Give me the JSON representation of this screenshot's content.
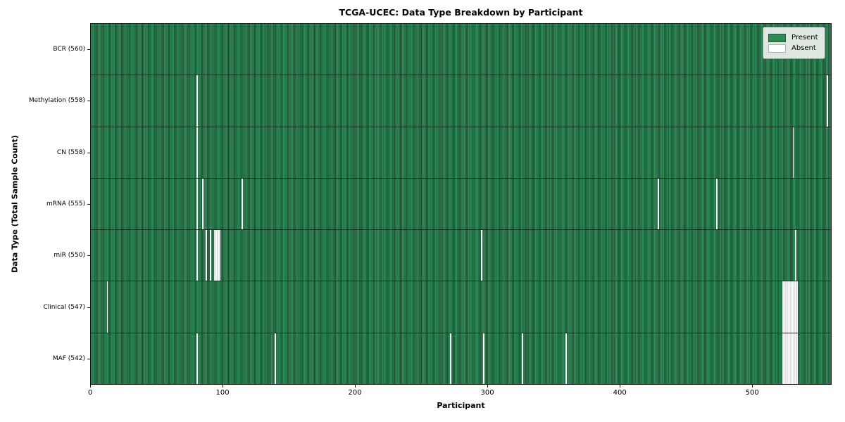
{
  "chart_data": {
    "type": "heatmap",
    "title": "TCGA-UCEC: Data Type Breakdown by Participant",
    "xlabel": "Participant",
    "ylabel": "Data Type (Total Sample Count)",
    "n_participants": 560,
    "x_ticks": [
      0,
      100,
      200,
      300,
      400,
      500
    ],
    "grid": false,
    "legend_position": "upper right",
    "colors": {
      "present": "#2e8b57",
      "present_dark": "#266f46",
      "absent": "#ffffff"
    },
    "legend": [
      {
        "label": "Present",
        "key": "present"
      },
      {
        "label": "Absent",
        "key": "absent"
      }
    ],
    "rows": [
      {
        "label": "BCR (560)",
        "data_type": "BCR",
        "present_count": 560,
        "absent_participants": []
      },
      {
        "label": "Methylation (558)",
        "data_type": "Methylation",
        "present_count": 558,
        "absent_participants": [
          80,
          557
        ]
      },
      {
        "label": "CN (558)",
        "data_type": "CN",
        "present_count": 558,
        "absent_participants": [
          80,
          531
        ]
      },
      {
        "label": "mRNA (555)",
        "data_type": "mRNA",
        "present_count": 555,
        "absent_participants": [
          80,
          84,
          114,
          429,
          473
        ]
      },
      {
        "label": "miR (550)",
        "data_type": "miR",
        "present_count": 550,
        "absent_participants": [
          80,
          87,
          90,
          93,
          94,
          95,
          96,
          97,
          295,
          533
        ]
      },
      {
        "label": "Clinical (547)",
        "data_type": "Clinical",
        "present_count": 547,
        "absent_participants": [
          12,
          523,
          524,
          525,
          526,
          527,
          528,
          529,
          530,
          531,
          532,
          533,
          534
        ]
      },
      {
        "label": "MAF (542)",
        "data_type": "MAF",
        "present_count": 542,
        "absent_participants": [
          80,
          139,
          272,
          297,
          326,
          359,
          523,
          524,
          525,
          526,
          527,
          528,
          529,
          530,
          531,
          532,
          533,
          534
        ]
      }
    ]
  }
}
